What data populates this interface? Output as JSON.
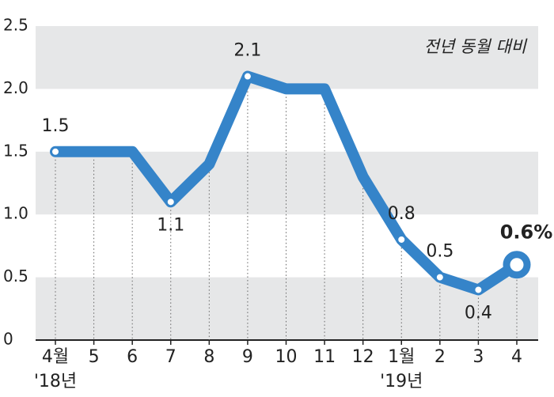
{
  "chart_data": {
    "type": "line",
    "subtitle": "전년 동월 대비",
    "categories": [
      "4월",
      "5",
      "6",
      "7",
      "8",
      "9",
      "10",
      "11",
      "12",
      "1월",
      "2",
      "3",
      "4"
    ],
    "x_year_labels": [
      "'18년",
      null,
      null,
      null,
      null,
      null,
      null,
      null,
      null,
      "'19년",
      null,
      null,
      null
    ],
    "values": [
      1.5,
      1.5,
      1.5,
      1.1,
      1.4,
      2.1,
      2.0,
      2.0,
      1.3,
      0.8,
      0.5,
      0.4,
      0.6
    ],
    "value_labels": [
      "1.5",
      null,
      null,
      "1.1",
      null,
      "2.1",
      null,
      null,
      null,
      "0.8",
      "0.5",
      "0.4",
      "0.6%"
    ],
    "color": "#3584c9",
    "ylim": [
      0,
      2.5
    ],
    "yticks": [
      0,
      {
        "value": 0.5,
        "label": "0.5"
      },
      {
        "value": 1,
        "label": "1.0"
      },
      {
        "value": 1.5,
        "label": "1.5"
      },
      {
        "value": 2,
        "label": "2.0"
      },
      {
        "value": 2.5,
        "label": "2.5"
      }
    ],
    "bands": true
  }
}
